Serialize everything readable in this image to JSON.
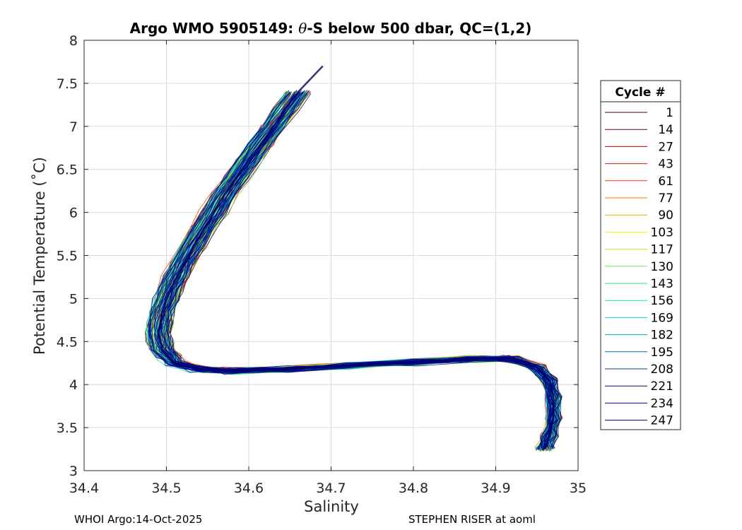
{
  "chart_data": {
    "type": "line",
    "title_prefix": "Argo WMO 5905149: ",
    "title_theta": "θ",
    "title_suffix": "-S below 500 dbar,  QC=(1,2)",
    "xlabel": "Salinity",
    "ylabel": "Potential Temperature (˚C)",
    "xlim": [
      34.4,
      35
    ],
    "ylim": [
      3,
      8
    ],
    "xticks": [
      "34.4",
      "34.5",
      "34.6",
      "34.7",
      "34.8",
      "34.9",
      "35"
    ],
    "yticks": [
      "3",
      "3.5",
      "4",
      "4.5",
      "5",
      "5.5",
      "6",
      "6.5",
      "7",
      "7.5",
      "8"
    ],
    "grid": true,
    "legend": {
      "title": "Cycle #",
      "placement": "outside-right",
      "entries": [
        {
          "label": "1",
          "color": "#4a0000"
        },
        {
          "label": "14",
          "color": "#7a0000"
        },
        {
          "label": "27",
          "color": "#b00000"
        },
        {
          "label": "43",
          "color": "#e01010"
        },
        {
          "label": "61",
          "color": "#f04000"
        },
        {
          "label": "77",
          "color": "#f07800"
        },
        {
          "label": "90",
          "color": "#f0b000"
        },
        {
          "label": "103",
          "color": "#f0f000"
        },
        {
          "label": "117",
          "color": "#b0f020"
        },
        {
          "label": "130",
          "color": "#60f050"
        },
        {
          "label": "143",
          "color": "#30e080"
        },
        {
          "label": "156",
          "color": "#20e0b0"
        },
        {
          "label": "169",
          "color": "#20d0e0"
        },
        {
          "label": "182",
          "color": "#10a0c0"
        },
        {
          "label": "195",
          "color": "#0070b0"
        },
        {
          "label": "208",
          "color": "#004090"
        },
        {
          "label": "221",
          "color": "#001070"
        },
        {
          "label": "234",
          "color": "#0000a0"
        },
        {
          "label": "247",
          "color": "#000080"
        }
      ]
    },
    "representative_profile": {
      "salinity": [
        34.69,
        34.66,
        34.63,
        34.6,
        34.57,
        34.545,
        34.52,
        34.505,
        34.495,
        34.49,
        34.495,
        34.51,
        34.54,
        34.58,
        34.65,
        34.72,
        34.8,
        34.87,
        34.92,
        34.95,
        34.965,
        34.97,
        34.97,
        34.965,
        34.96
      ],
      "temperature": [
        7.7,
        7.4,
        7.0,
        6.6,
        6.2,
        5.8,
        5.4,
        5.1,
        4.85,
        4.6,
        4.4,
        4.25,
        4.18,
        4.16,
        4.18,
        4.22,
        4.26,
        4.3,
        4.3,
        4.2,
        4.05,
        3.85,
        3.6,
        3.4,
        3.25
      ]
    }
  },
  "footer": {
    "left": "WHOI Argo:14-Oct-2025",
    "right": "STEPHEN RISER at aoml"
  }
}
